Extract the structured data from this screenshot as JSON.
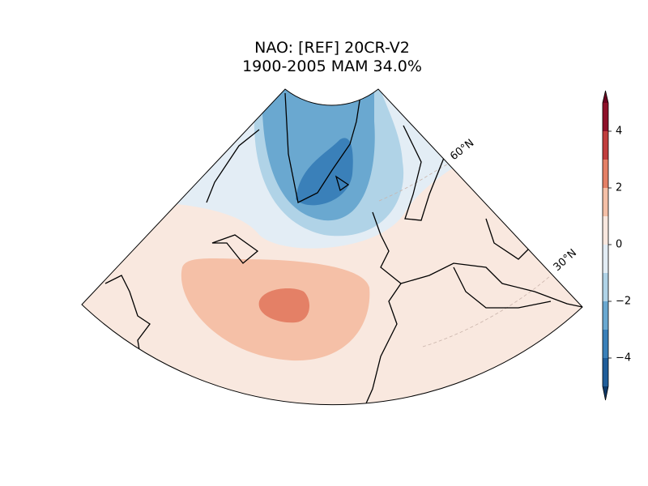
{
  "title_lines": [
    "NAO: [REF] 20CR-V2",
    "1900-2005 MAM 34.0%"
  ],
  "lat_labels": [
    "60°N",
    "30°N"
  ],
  "colorbar": {
    "levels": [
      -5,
      -4,
      -3,
      -2,
      -1,
      0,
      1,
      2,
      3,
      4,
      5
    ],
    "colors": [
      "#1f5d99",
      "#3a80b9",
      "#6aa8d0",
      "#b0d3e7",
      "#e3edf5",
      "#f9e8df",
      "#f5c0a7",
      "#e48066",
      "#c13e3e",
      "#8e1129"
    ],
    "extend_colors": [
      "#0d3866",
      "#6a0220"
    ],
    "ylim": [
      -5,
      5
    ],
    "yticks": [
      {
        "value": -4,
        "label": "−4"
      },
      {
        "value": -2,
        "label": "−2"
      },
      0,
      2,
      4
    ]
  }
}
